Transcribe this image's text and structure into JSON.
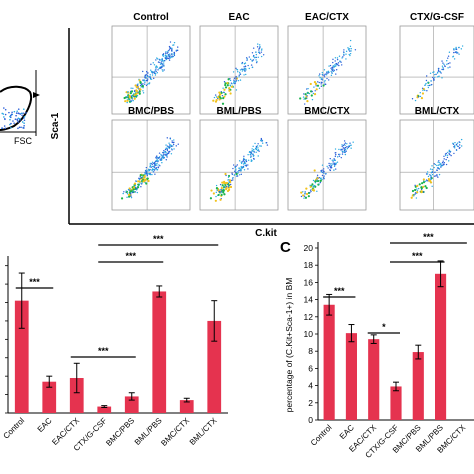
{
  "panel_a": {
    "ylabel": "Sca-1",
    "xlabel": "C.kit",
    "gate_xlabel": "FSC",
    "plots": [
      {
        "title": "Control"
      },
      {
        "title": "EAC"
      },
      {
        "title": "EAC/CTX"
      },
      {
        "title": "CTX/G-CSF"
      },
      {
        "title": "BMC/PBS"
      },
      {
        "title": "BML/PBS"
      },
      {
        "title": "BMC/CTX"
      },
      {
        "title": "BML/CTX"
      }
    ]
  },
  "chart_data": [
    {
      "type": "bar",
      "panel": "B",
      "categories": [
        "Control",
        "EAC",
        "EAC/CTX",
        "CTX/G-CSF",
        "BMC/PBS",
        "BML/PBS",
        "BMC/CTX",
        "BML/CTX"
      ],
      "values": [
        6.1,
        1.7,
        1.9,
        0.35,
        0.9,
        6.6,
        0.7,
        5.0
      ],
      "errors": [
        1.5,
        0.3,
        0.8,
        0.05,
        0.2,
        0.3,
        0.1,
        1.1
      ],
      "ylim": [
        0,
        8.2
      ],
      "color": "#e5334f",
      "significance": [
        {
          "from": 0,
          "to": 1,
          "label": "***"
        },
        {
          "from": 2,
          "to": 4,
          "label": "***"
        },
        {
          "from": 3,
          "to": 5,
          "label": "***"
        },
        {
          "from": 3,
          "to": 7,
          "label": "***"
        }
      ]
    },
    {
      "type": "bar",
      "panel": "C",
      "ylabel": "percentage of (C.Kit+Sca-1+) in BM",
      "categories": [
        "Control",
        "EAC",
        "EAC/CTX",
        "CTX/G-CSF",
        "BMC/PBS",
        "BML/PBS",
        "BMC/CTX"
      ],
      "values": [
        13.4,
        10.1,
        9.4,
        3.9,
        7.9,
        17.0,
        0
      ],
      "errors": [
        1.2,
        1.0,
        0.5,
        0.5,
        0.8,
        1.5,
        0
      ],
      "yticks": [
        0,
        2,
        4,
        6,
        8,
        10,
        12,
        14,
        16,
        18,
        20
      ],
      "ylim": [
        0,
        20
      ],
      "color": "#e5334f",
      "significance": [
        {
          "from": 0,
          "to": 1,
          "label": "***"
        },
        {
          "from": 2,
          "to": 3,
          "label": "*"
        },
        {
          "from": 3,
          "to": 5,
          "label": "***"
        },
        {
          "from": 3,
          "to": 6,
          "label": "***"
        }
      ]
    }
  ],
  "panel_c_letter": "C"
}
